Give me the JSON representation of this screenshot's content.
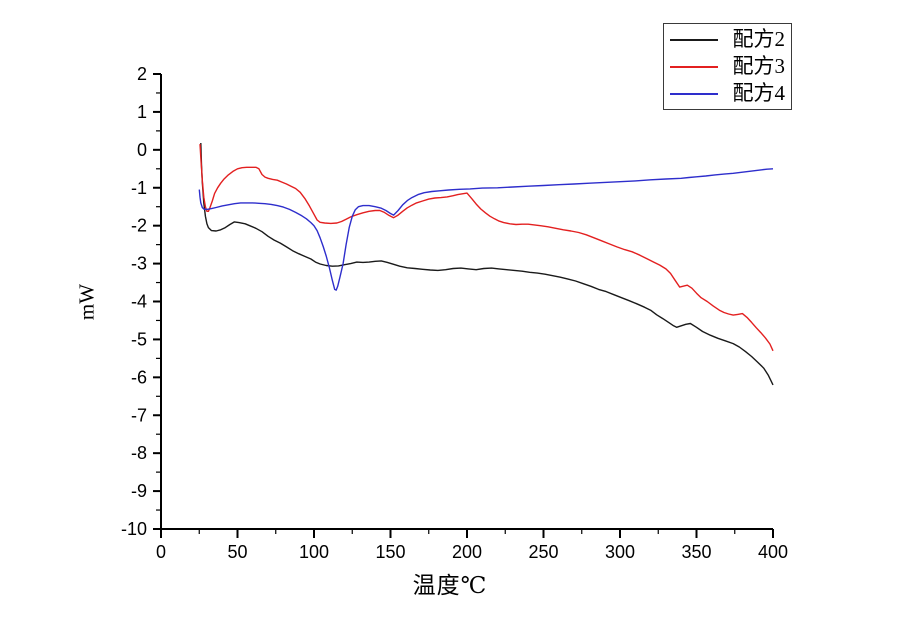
{
  "chart_data": {
    "type": "line",
    "title": "",
    "xlabel": "温度℃",
    "ylabel": "mW",
    "xlim": [
      0,
      400
    ],
    "ylim": [
      -10,
      2
    ],
    "x_ticks": [
      0,
      50,
      100,
      150,
      200,
      250,
      300,
      350,
      400
    ],
    "x_minor_step": 25,
    "y_ticks": [
      2,
      1,
      0,
      -1,
      -2,
      -3,
      -4,
      -5,
      -6,
      -7,
      -8,
      -9,
      -10
    ],
    "y_minor_step": 0.5,
    "grid": false,
    "legend_position": "top-right",
    "axis_color": "#000000",
    "series": [
      {
        "name": "配方2",
        "color": "#1a1a1a",
        "points": [
          [
            26,
            0.18
          ],
          [
            26.5,
            -0.4
          ],
          [
            27,
            -0.85
          ],
          [
            28,
            -1.4
          ],
          [
            29,
            -1.75
          ],
          [
            30,
            -1.95
          ],
          [
            31,
            -2.05
          ],
          [
            33,
            -2.13
          ],
          [
            36,
            -2.14
          ],
          [
            39,
            -2.11
          ],
          [
            42,
            -2.05
          ],
          [
            45,
            -1.97
          ],
          [
            48,
            -1.9
          ],
          [
            51,
            -1.92
          ],
          [
            55,
            -1.95
          ],
          [
            58,
            -2.0
          ],
          [
            62,
            -2.07
          ],
          [
            66,
            -2.16
          ],
          [
            70,
            -2.28
          ],
          [
            74,
            -2.38
          ],
          [
            78,
            -2.46
          ],
          [
            82,
            -2.56
          ],
          [
            86,
            -2.66
          ],
          [
            90,
            -2.74
          ],
          [
            94,
            -2.81
          ],
          [
            98,
            -2.88
          ],
          [
            101,
            -2.96
          ],
          [
            104,
            -3.01
          ],
          [
            108,
            -3.05
          ],
          [
            112,
            -3.07
          ],
          [
            116,
            -3.06
          ],
          [
            120,
            -3.03
          ],
          [
            124,
            -3.0
          ],
          [
            128,
            -2.96
          ],
          [
            132,
            -2.97
          ],
          [
            136,
            -2.96
          ],
          [
            140,
            -2.94
          ],
          [
            144,
            -2.93
          ],
          [
            148,
            -2.97
          ],
          [
            152,
            -3.02
          ],
          [
            156,
            -3.07
          ],
          [
            161,
            -3.11
          ],
          [
            166,
            -3.13
          ],
          [
            171,
            -3.15
          ],
          [
            176,
            -3.17
          ],
          [
            181,
            -3.18
          ],
          [
            186,
            -3.16
          ],
          [
            191,
            -3.13
          ],
          [
            196,
            -3.12
          ],
          [
            201,
            -3.14
          ],
          [
            206,
            -3.16
          ],
          [
            211,
            -3.13
          ],
          [
            216,
            -3.12
          ],
          [
            221,
            -3.14
          ],
          [
            226,
            -3.16
          ],
          [
            231,
            -3.18
          ],
          [
            236,
            -3.2
          ],
          [
            241,
            -3.23
          ],
          [
            246,
            -3.25
          ],
          [
            251,
            -3.28
          ],
          [
            256,
            -3.32
          ],
          [
            261,
            -3.36
          ],
          [
            266,
            -3.41
          ],
          [
            271,
            -3.46
          ],
          [
            276,
            -3.53
          ],
          [
            281,
            -3.6
          ],
          [
            286,
            -3.68
          ],
          [
            291,
            -3.74
          ],
          [
            296,
            -3.82
          ],
          [
            301,
            -3.9
          ],
          [
            306,
            -3.98
          ],
          [
            311,
            -4.06
          ],
          [
            316,
            -4.15
          ],
          [
            320,
            -4.23
          ],
          [
            324,
            -4.35
          ],
          [
            328,
            -4.45
          ],
          [
            332,
            -4.56
          ],
          [
            335,
            -4.64
          ],
          [
            337,
            -4.68
          ],
          [
            340,
            -4.64
          ],
          [
            343,
            -4.6
          ],
          [
            346,
            -4.58
          ],
          [
            350,
            -4.68
          ],
          [
            354,
            -4.79
          ],
          [
            359,
            -4.89
          ],
          [
            364,
            -4.97
          ],
          [
            369,
            -5.04
          ],
          [
            374,
            -5.11
          ],
          [
            378,
            -5.2
          ],
          [
            382,
            -5.32
          ],
          [
            386,
            -5.45
          ],
          [
            390,
            -5.6
          ],
          [
            394,
            -5.76
          ],
          [
            397,
            -5.95
          ],
          [
            400,
            -6.2
          ]
        ]
      },
      {
        "name": "配方3",
        "color": "#e32020",
        "points": [
          [
            25.5,
            0.15
          ],
          [
            26,
            -0.2
          ],
          [
            27,
            -0.8
          ],
          [
            28,
            -1.25
          ],
          [
            29,
            -1.5
          ],
          [
            30,
            -1.62
          ],
          [
            31,
            -1.62
          ],
          [
            32,
            -1.52
          ],
          [
            33.5,
            -1.35
          ],
          [
            35,
            -1.15
          ],
          [
            37,
            -1.0
          ],
          [
            39,
            -0.88
          ],
          [
            41,
            -0.78
          ],
          [
            44,
            -0.66
          ],
          [
            47,
            -0.57
          ],
          [
            50,
            -0.5
          ],
          [
            53,
            -0.47
          ],
          [
            56,
            -0.46
          ],
          [
            59,
            -0.46
          ],
          [
            62,
            -0.46
          ],
          [
            64,
            -0.5
          ],
          [
            66,
            -0.65
          ],
          [
            68,
            -0.72
          ],
          [
            70,
            -0.75
          ],
          [
            73,
            -0.78
          ],
          [
            76,
            -0.8
          ],
          [
            79,
            -0.85
          ],
          [
            82,
            -0.9
          ],
          [
            85,
            -0.96
          ],
          [
            88,
            -1.02
          ],
          [
            91,
            -1.12
          ],
          [
            94,
            -1.28
          ],
          [
            97,
            -1.48
          ],
          [
            100,
            -1.7
          ],
          [
            102,
            -1.85
          ],
          [
            104,
            -1.91
          ],
          [
            107,
            -1.93
          ],
          [
            111,
            -1.94
          ],
          [
            115,
            -1.93
          ],
          [
            118,
            -1.89
          ],
          [
            121,
            -1.83
          ],
          [
            124,
            -1.77
          ],
          [
            128,
            -1.71
          ],
          [
            132,
            -1.66
          ],
          [
            136,
            -1.62
          ],
          [
            140,
            -1.6
          ],
          [
            143,
            -1.6
          ],
          [
            146,
            -1.65
          ],
          [
            149,
            -1.73
          ],
          [
            152,
            -1.79
          ],
          [
            155,
            -1.72
          ],
          [
            158,
            -1.62
          ],
          [
            161,
            -1.53
          ],
          [
            164,
            -1.46
          ],
          [
            167,
            -1.4
          ],
          [
            171,
            -1.35
          ],
          [
            175,
            -1.3
          ],
          [
            179,
            -1.27
          ],
          [
            183,
            -1.26
          ],
          [
            187,
            -1.24
          ],
          [
            191,
            -1.21
          ],
          [
            194,
            -1.18
          ],
          [
            197,
            -1.16
          ],
          [
            200,
            -1.14
          ],
          [
            203,
            -1.28
          ],
          [
            206,
            -1.43
          ],
          [
            209,
            -1.56
          ],
          [
            212,
            -1.66
          ],
          [
            215,
            -1.75
          ],
          [
            218,
            -1.82
          ],
          [
            221,
            -1.88
          ],
          [
            224,
            -1.92
          ],
          [
            228,
            -1.95
          ],
          [
            232,
            -1.97
          ],
          [
            236,
            -1.96
          ],
          [
            240,
            -1.96
          ],
          [
            244,
            -1.98
          ],
          [
            248,
            -2.0
          ],
          [
            253,
            -2.03
          ],
          [
            258,
            -2.07
          ],
          [
            263,
            -2.11
          ],
          [
            268,
            -2.14
          ],
          [
            273,
            -2.18
          ],
          [
            278,
            -2.24
          ],
          [
            283,
            -2.32
          ],
          [
            288,
            -2.4
          ],
          [
            293,
            -2.48
          ],
          [
            298,
            -2.56
          ],
          [
            303,
            -2.63
          ],
          [
            308,
            -2.69
          ],
          [
            313,
            -2.78
          ],
          [
            318,
            -2.88
          ],
          [
            322,
            -2.96
          ],
          [
            326,
            -3.04
          ],
          [
            330,
            -3.14
          ],
          [
            333,
            -3.26
          ],
          [
            336,
            -3.44
          ],
          [
            339,
            -3.62
          ],
          [
            341,
            -3.6
          ],
          [
            344,
            -3.57
          ],
          [
            347,
            -3.65
          ],
          [
            350,
            -3.78
          ],
          [
            353,
            -3.9
          ],
          [
            357,
            -4.0
          ],
          [
            361,
            -4.12
          ],
          [
            365,
            -4.23
          ],
          [
            368,
            -4.29
          ],
          [
            371,
            -4.33
          ],
          [
            374,
            -4.36
          ],
          [
            377,
            -4.34
          ],
          [
            380,
            -4.32
          ],
          [
            383,
            -4.42
          ],
          [
            386,
            -4.55
          ],
          [
            389,
            -4.69
          ],
          [
            392,
            -4.82
          ],
          [
            395,
            -4.96
          ],
          [
            398,
            -5.12
          ],
          [
            400,
            -5.3
          ]
        ]
      },
      {
        "name": "配方4",
        "color": "#2e2ecc",
        "points": [
          [
            25,
            -1.05
          ],
          [
            25.5,
            -1.25
          ],
          [
            26,
            -1.4
          ],
          [
            27,
            -1.52
          ],
          [
            28,
            -1.56
          ],
          [
            30,
            -1.57
          ],
          [
            33,
            -1.55
          ],
          [
            36,
            -1.52
          ],
          [
            40,
            -1.48
          ],
          [
            44,
            -1.45
          ],
          [
            48,
            -1.42
          ],
          [
            52,
            -1.4
          ],
          [
            56,
            -1.4
          ],
          [
            60,
            -1.4
          ],
          [
            64,
            -1.41
          ],
          [
            68,
            -1.42
          ],
          [
            72,
            -1.44
          ],
          [
            76,
            -1.47
          ],
          [
            80,
            -1.51
          ],
          [
            84,
            -1.57
          ],
          [
            88,
            -1.65
          ],
          [
            92,
            -1.74
          ],
          [
            95,
            -1.82
          ],
          [
            98,
            -1.92
          ],
          [
            100,
            -2.0
          ],
          [
            102,
            -2.13
          ],
          [
            104,
            -2.32
          ],
          [
            106,
            -2.55
          ],
          [
            108,
            -2.8
          ],
          [
            110,
            -3.1
          ],
          [
            112,
            -3.45
          ],
          [
            113.5,
            -3.68
          ],
          [
            114.5,
            -3.7
          ],
          [
            115.5,
            -3.6
          ],
          [
            117,
            -3.35
          ],
          [
            119,
            -3.0
          ],
          [
            121,
            -2.5
          ],
          [
            123,
            -2.05
          ],
          [
            125,
            -1.75
          ],
          [
            127,
            -1.58
          ],
          [
            129,
            -1.5
          ],
          [
            132,
            -1.47
          ],
          [
            136,
            -1.47
          ],
          [
            140,
            -1.5
          ],
          [
            144,
            -1.54
          ],
          [
            147,
            -1.6
          ],
          [
            150,
            -1.68
          ],
          [
            152,
            -1.72
          ],
          [
            155,
            -1.6
          ],
          [
            158,
            -1.45
          ],
          [
            161,
            -1.34
          ],
          [
            164,
            -1.26
          ],
          [
            168,
            -1.18
          ],
          [
            172,
            -1.13
          ],
          [
            177,
            -1.1
          ],
          [
            182,
            -1.08
          ],
          [
            188,
            -1.06
          ],
          [
            195,
            -1.04
          ],
          [
            202,
            -1.03
          ],
          [
            210,
            -1.01
          ],
          [
            220,
            -1.0
          ],
          [
            230,
            -0.98
          ],
          [
            240,
            -0.96
          ],
          [
            250,
            -0.94
          ],
          [
            260,
            -0.92
          ],
          [
            270,
            -0.9
          ],
          [
            280,
            -0.88
          ],
          [
            290,
            -0.86
          ],
          [
            300,
            -0.84
          ],
          [
            310,
            -0.82
          ],
          [
            320,
            -0.79
          ],
          [
            330,
            -0.77
          ],
          [
            340,
            -0.75
          ],
          [
            345,
            -0.73
          ],
          [
            350,
            -0.71
          ],
          [
            356,
            -0.69
          ],
          [
            362,
            -0.66
          ],
          [
            368,
            -0.64
          ],
          [
            374,
            -0.62
          ],
          [
            380,
            -0.59
          ],
          [
            386,
            -0.56
          ],
          [
            392,
            -0.53
          ],
          [
            396,
            -0.51
          ],
          [
            400,
            -0.5
          ]
        ]
      }
    ]
  }
}
